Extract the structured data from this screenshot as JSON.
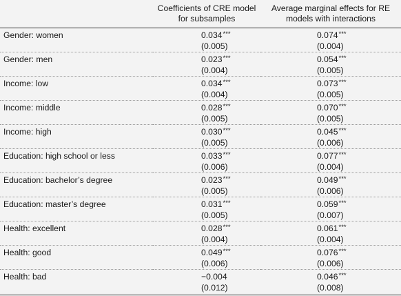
{
  "header": {
    "col0": "",
    "col1": "Coefficients of CRE model for subsamples",
    "col2": "Average marginal effects for RE models with interactions"
  },
  "rows": [
    {
      "label": "Gender: women",
      "c1": "0.034",
      "c1_stars": "***",
      "c1_se": "(0.005)",
      "c2": "0.074",
      "c2_stars": "***",
      "c2_se": "(0.004)"
    },
    {
      "label": "Gender: men",
      "c1": "0.023",
      "c1_stars": "***",
      "c1_se": "(0.004)",
      "c2": "0.054",
      "c2_stars": "***",
      "c2_se": "(0.005)"
    },
    {
      "label": "Income: low",
      "c1": "0.034",
      "c1_stars": "***",
      "c1_se": "(0.004)",
      "c2": "0.073",
      "c2_stars": "***",
      "c2_se": "(0.005)"
    },
    {
      "label": "Income: middle",
      "c1": "0.028",
      "c1_stars": "***",
      "c1_se": "(0.005)",
      "c2": "0.070",
      "c2_stars": "***",
      "c2_se": "(0.005)"
    },
    {
      "label": "Income: high",
      "c1": "0.030",
      "c1_stars": "***",
      "c1_se": "(0.005)",
      "c2": "0.045",
      "c2_stars": "***",
      "c2_se": "(0.006)"
    },
    {
      "label": "Education: high school or less",
      "c1": "0.033",
      "c1_stars": "***",
      "c1_se": "(0.006)",
      "c2": "0.077",
      "c2_stars": "***",
      "c2_se": "(0.004)"
    },
    {
      "label": "Education: bachelor’s degree",
      "c1": "0.023",
      "c1_stars": "***",
      "c1_se": "(0.005)",
      "c2": "0.049",
      "c2_stars": "***",
      "c2_se": "(0.006)"
    },
    {
      "label": "Education: master’s degree",
      "c1": "0.031",
      "c1_stars": "***",
      "c1_se": "(0.005)",
      "c2": "0.059",
      "c2_stars": "***",
      "c2_se": "(0.007)"
    },
    {
      "label": "Health: excellent",
      "c1": "0.028",
      "c1_stars": "***",
      "c1_se": "(0.004)",
      "c2": "0.061",
      "c2_stars": "***",
      "c2_se": "(0.004)"
    },
    {
      "label": "Health: good",
      "c1": "0.049",
      "c1_stars": "***",
      "c1_se": "(0.006)",
      "c2": "0.076",
      "c2_stars": "***",
      "c2_se": "(0.006)"
    },
    {
      "label": "Health: bad",
      "c1": "−0.004",
      "c1_stars": "",
      "c1_se": "(0.012)",
      "c2": "0.046",
      "c2_stars": "***",
      "c2_se": "(0.008)"
    }
  ]
}
